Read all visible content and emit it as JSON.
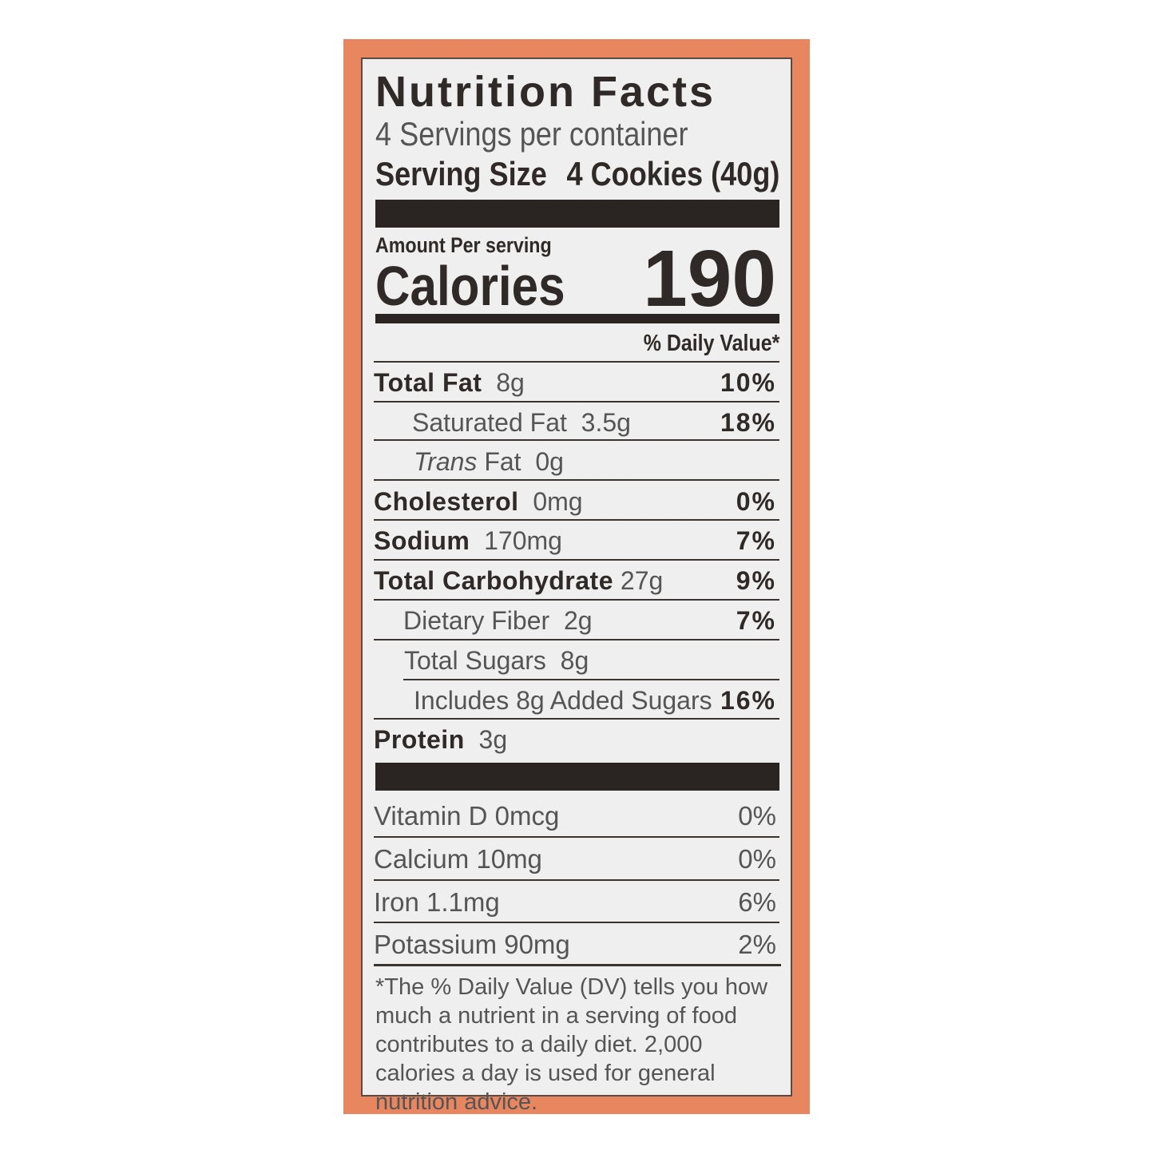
{
  "colors": {
    "frame": "#e8865f",
    "panel": "#efefef",
    "text": "#2f2a27"
  },
  "label": {
    "title": "Nutrition Facts",
    "servings_per_container": "4 Servings per container",
    "serving_size_label": "Serving Size",
    "serving_size_value": "4 Cookies (40g)",
    "amount_per_serving": "Amount Per serving",
    "calories_label": "Calories",
    "calories_value": "190",
    "daily_value_header": "% Daily Value*",
    "nutrients": [
      {
        "name": "Total Fat",
        "amount": "8g",
        "dv": "10%"
      },
      {
        "name": "Saturated Fat",
        "amount": "3.5g",
        "dv": "18%"
      },
      {
        "name_italic": "Trans",
        "name": " Fat",
        "amount": "0g",
        "dv": ""
      },
      {
        "name": "Cholesterol",
        "amount": "0mg",
        "dv": "0%"
      },
      {
        "name": "Sodium",
        "amount": "170mg",
        "dv": "7%"
      },
      {
        "name": "Total Carbohydrate",
        "amount": "27g",
        "dv": "9%"
      },
      {
        "name": "Dietary Fiber",
        "amount": "2g",
        "dv": "7%"
      },
      {
        "name": "Total Sugars",
        "amount": "8g",
        "dv": ""
      },
      {
        "name": "Includes 8g Added Sugars",
        "amount": "",
        "dv": "16%"
      },
      {
        "name": "Protein",
        "amount": "3g",
        "dv": ""
      }
    ],
    "vitamins": [
      {
        "name": "Vitamin D 0mcg",
        "dv": "0%"
      },
      {
        "name": "Calcium 10mg",
        "dv": "0%"
      },
      {
        "name": "Iron 1.1mg",
        "dv": "6%"
      },
      {
        "name": "Potassium 90mg",
        "dv": "2%"
      }
    ],
    "footnote": "*The % Daily Value (DV) tells you how much a nutrient in a serving of food contributes to a daily diet. 2,000 calories a day is used for general nutrition advice."
  }
}
